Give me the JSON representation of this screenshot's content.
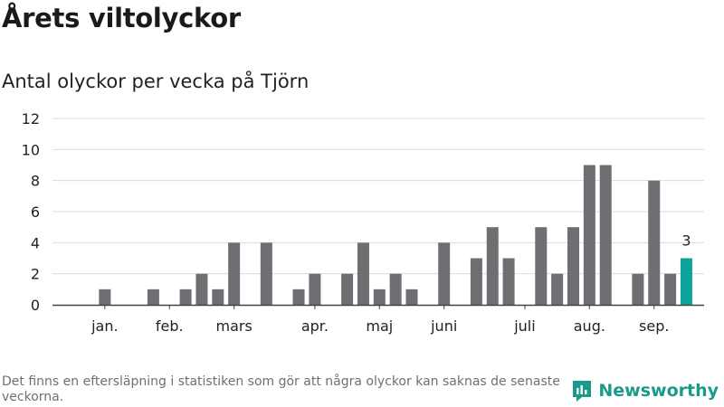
{
  "header": {
    "title": "Årets viltolyckor",
    "subtitle": "Antal olyckor per vecka på Tjörn"
  },
  "footer": {
    "note": "Det finns en eftersläpning i statistiken som gör att några olyckor kan saknas de senaste veckorna.",
    "brand": "Newsworthy",
    "brand_icon": "bar-chart-logo-icon"
  },
  "colors": {
    "bar": "#6f6e73",
    "highlight": "#0ca39a",
    "grid": "#dcdcdc",
    "axis": "#444444"
  },
  "chart_data": {
    "type": "bar",
    "title": "Antal olyckor per vecka på Tjörn",
    "xlabel": "",
    "ylabel": "",
    "ylim": [
      0,
      12
    ],
    "yticks": [
      0,
      2,
      4,
      6,
      8,
      10,
      12
    ],
    "grid": true,
    "x_ticks": [
      {
        "label": "jan.",
        "week": 2
      },
      {
        "label": "feb.",
        "week": 6
      },
      {
        "label": "mars",
        "week": 10
      },
      {
        "label": "apr.",
        "week": 15
      },
      {
        "label": "maj",
        "week": 19
      },
      {
        "label": "juni",
        "week": 23
      },
      {
        "label": "juli",
        "week": 28
      },
      {
        "label": "aug.",
        "week": 32
      },
      {
        "label": "sep.",
        "week": 36
      }
    ],
    "weeks": [
      1,
      2,
      3,
      4,
      5,
      6,
      7,
      8,
      9,
      10,
      11,
      12,
      13,
      14,
      15,
      16,
      17,
      18,
      19,
      20,
      21,
      22,
      23,
      24,
      25,
      26,
      27,
      28,
      29,
      30,
      31,
      32,
      33,
      34,
      35,
      36,
      37,
      38,
      39
    ],
    "values": [
      0,
      1,
      0,
      0,
      1,
      0,
      1,
      2,
      1,
      4,
      0,
      4,
      0,
      1,
      2,
      0,
      2,
      4,
      1,
      2,
      1,
      0,
      4,
      0,
      3,
      5,
      3,
      0,
      5,
      2,
      5,
      9,
      9,
      0,
      2,
      8,
      2,
      3,
      0
    ],
    "highlight_week": 38,
    "annotations": [
      {
        "week": 38,
        "text": "3"
      }
    ]
  }
}
